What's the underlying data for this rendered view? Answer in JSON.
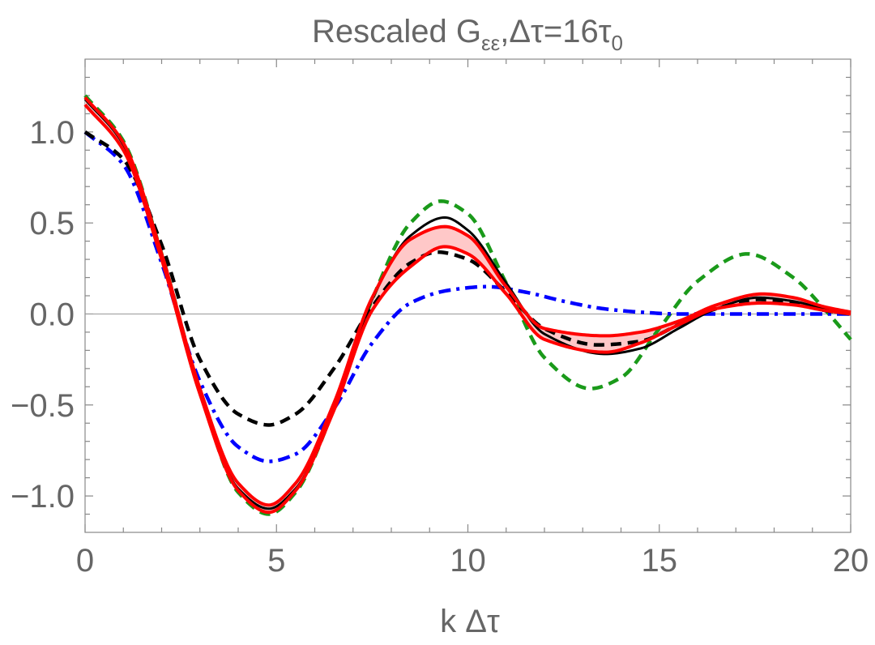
{
  "chart_data": {
    "type": "line",
    "title": {
      "main": "Rescaled G",
      "subscript": "εε",
      "separator": ",",
      "delta_tau": "Δτ=16τ",
      "delta_tau_subscript": "0"
    },
    "xlabel": "k Δτ",
    "ylabel": "",
    "xlim": [
      0,
      20
    ],
    "ylim": [
      -1.2,
      1.4
    ],
    "x_ticks": [
      0,
      5,
      10,
      15,
      20
    ],
    "x_tick_labels": [
      "0",
      "5",
      "10",
      "15",
      "20"
    ],
    "y_ticks": [
      -1.0,
      -0.5,
      0.0,
      0.5,
      1.0
    ],
    "y_tick_labels": [
      "−1.0",
      "−0.5",
      "0.0",
      "0.5",
      "1.0"
    ],
    "zero_line": true,
    "colors": {
      "red": "#ff0000",
      "band_fill": "#ffc8c8",
      "black": "#000000",
      "green": "#1a9a1a",
      "blue": "#0000ff",
      "axis": "#666666",
      "zero": "#999999"
    },
    "series": [
      {
        "name": "green-dashed",
        "style": "dashed",
        "color": "#1a9a1a",
        "x": [
          0,
          1,
          2,
          3,
          4,
          4.8,
          5.5,
          6.5,
          7.5,
          8.5,
          9.3,
          10,
          11,
          12,
          13.2,
          14,
          15,
          16,
          17.3,
          18.5,
          19.3,
          20
        ],
        "y": [
          1.2,
          0.95,
          0.33,
          -0.42,
          -0.98,
          -1.1,
          -0.98,
          -0.52,
          0.08,
          0.5,
          0.62,
          0.55,
          0.17,
          -0.24,
          -0.41,
          -0.35,
          -0.08,
          0.18,
          0.33,
          0.2,
          0.03,
          -0.14
        ]
      },
      {
        "name": "black-solid",
        "style": "solid",
        "color": "#000000",
        "x": [
          0,
          1,
          2,
          3,
          4,
          4.8,
          5.5,
          6.5,
          7.5,
          8.5,
          9.4,
          10,
          11,
          12,
          13.6,
          14.5,
          15.5,
          16.5,
          17.6,
          18.5,
          19.3,
          20
        ],
        "y": [
          1.18,
          0.93,
          0.32,
          -0.43,
          -0.96,
          -1.07,
          -0.96,
          -0.52,
          0.08,
          0.43,
          0.53,
          0.46,
          0.17,
          -0.11,
          -0.22,
          -0.19,
          -0.08,
          0.03,
          0.09,
          0.07,
          0.03,
          0.01
        ]
      },
      {
        "name": "black-dashed",
        "style": "dashed",
        "color": "#000000",
        "x": [
          0,
          1,
          2,
          3,
          4,
          4.8,
          5.5,
          6.5,
          7.5,
          8.5,
          9.2,
          10,
          11,
          12,
          13.4,
          14.5,
          15.5,
          16.5,
          17.6,
          18.5,
          19.3,
          20
        ],
        "y": [
          1.0,
          0.85,
          0.38,
          -0.25,
          -0.55,
          -0.61,
          -0.55,
          -0.3,
          0.04,
          0.28,
          0.34,
          0.3,
          0.12,
          -0.08,
          -0.17,
          -0.15,
          -0.06,
          0.03,
          0.08,
          0.06,
          0.02,
          0.0
        ]
      },
      {
        "name": "blue-dashdot",
        "style": "dashdot",
        "color": "#0000ff",
        "x": [
          0,
          1,
          2,
          3,
          4,
          4.8,
          5.5,
          6.5,
          7.5,
          8.5,
          9.5,
          10.5,
          11.5,
          12.5,
          13.5,
          14.5,
          15.5,
          16.5,
          17.5,
          18.5,
          19.3,
          20
        ],
        "y": [
          1.0,
          0.82,
          0.28,
          -0.37,
          -0.73,
          -0.81,
          -0.77,
          -0.52,
          -0.16,
          0.06,
          0.13,
          0.15,
          0.12,
          0.07,
          0.03,
          0.01,
          0.0,
          0.0,
          0.0,
          0.0,
          0.0,
          0.0
        ]
      },
      {
        "name": "red-band-upper",
        "style": "solid",
        "color": "#ff0000",
        "x": [
          0,
          1,
          2,
          3,
          4,
          4.8,
          5.5,
          6.5,
          7.5,
          8.5,
          9.4,
          10,
          11,
          12,
          13.6,
          14.5,
          15.5,
          16.5,
          17.7,
          18.5,
          19.3,
          20
        ],
        "y": [
          1.19,
          0.94,
          0.33,
          -0.41,
          -0.93,
          -1.05,
          -0.93,
          -0.49,
          0.09,
          0.41,
          0.48,
          0.43,
          0.15,
          -0.08,
          -0.12,
          -0.1,
          -0.04,
          0.05,
          0.11,
          0.09,
          0.04,
          0.01
        ]
      },
      {
        "name": "red-band-lower",
        "style": "solid",
        "color": "#ff0000",
        "x": [
          0,
          1,
          2,
          3,
          4,
          4.8,
          5.5,
          6.5,
          7.5,
          8.5,
          9.4,
          10,
          11,
          12,
          13.6,
          14.5,
          15.5,
          16.5,
          17.7,
          18.5,
          19.3,
          20
        ],
        "y": [
          1.15,
          0.9,
          0.3,
          -0.44,
          -0.97,
          -1.09,
          -0.97,
          -0.53,
          0.02,
          0.26,
          0.37,
          0.33,
          0.11,
          -0.14,
          -0.21,
          -0.16,
          -0.06,
          0.03,
          0.06,
          0.05,
          0.02,
          0.0
        ]
      }
    ]
  }
}
